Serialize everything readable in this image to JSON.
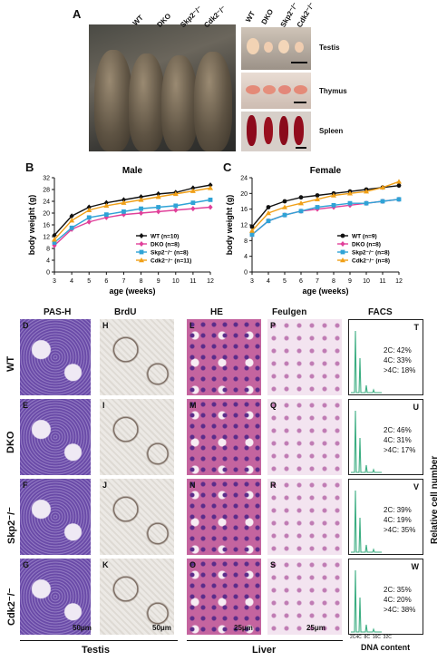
{
  "panelA": {
    "letter": "A",
    "mouse_labels": [
      "WT",
      "DKO",
      "Skp2⁻/⁻",
      "Cdk2⁻/⁻"
    ],
    "organ_labels": [
      "Testis",
      "Thymus",
      "Spleen"
    ],
    "organ_col_labels": [
      "WT",
      "DKO",
      "Skp2⁻/⁻",
      "Cdk2⁻/⁻"
    ]
  },
  "chart_data": [
    {
      "type": "line",
      "panel": "B",
      "title": "Male",
      "xlabel": "age (weeks)",
      "ylabel": "body weight (g)",
      "x": [
        3,
        4,
        5,
        6,
        7,
        8,
        9,
        10,
        11,
        12
      ],
      "xlim": [
        3,
        12
      ],
      "ylim": [
        0,
        32
      ],
      "yticks": [
        0,
        4,
        8,
        12,
        16,
        20,
        24,
        28,
        32
      ],
      "series": [
        {
          "name": "WT (n=10)",
          "color": "#111111",
          "marker": "diamond",
          "values": [
            12.5,
            19,
            22,
            23.5,
            24.5,
            25.5,
            26.5,
            27,
            28.5,
            29.5
          ]
        },
        {
          "name": "DKO (n=8)",
          "color": "#e0409a",
          "marker": "diamond",
          "values": [
            9,
            14.5,
            17,
            18.5,
            19.5,
            20,
            20.5,
            21,
            21.5,
            22
          ]
        },
        {
          "name": "Skp2⁻/⁻ (n=8)",
          "color": "#2fa3d6",
          "marker": "square",
          "values": [
            10,
            15,
            18.5,
            19.5,
            20.5,
            21.5,
            22,
            22.5,
            23.5,
            24.5
          ]
        },
        {
          "name": "Cdk2⁻/⁻ (n=11)",
          "color": "#f0a018",
          "marker": "triangle",
          "values": [
            11,
            17.5,
            21,
            22.5,
            23.5,
            24.5,
            25.5,
            26.5,
            27.5,
            28.5
          ]
        }
      ]
    },
    {
      "type": "line",
      "panel": "C",
      "title": "Female",
      "xlabel": "age (weeks)",
      "ylabel": "body weight (g)",
      "x": [
        3,
        4,
        5,
        6,
        7,
        8,
        9,
        10,
        11,
        12
      ],
      "xlim": [
        3,
        12
      ],
      "ylim": [
        0,
        24
      ],
      "yticks": [
        0,
        4,
        8,
        12,
        16,
        20,
        24
      ],
      "series": [
        {
          "name": "WT (n=9)",
          "color": "#111111",
          "marker": "circle",
          "values": [
            11.5,
            16.5,
            18,
            19,
            19.5,
            20,
            20.5,
            21,
            21.5,
            22
          ]
        },
        {
          "name": "DKO (n=8)",
          "color": "#e0409a",
          "marker": "diamond",
          "values": [
            9.5,
            13,
            14.5,
            15.5,
            16,
            16.5,
            17,
            17.5,
            18,
            18.5
          ]
        },
        {
          "name": "Skp2⁻/⁻ (n=8)",
          "color": "#2fa3d6",
          "marker": "square",
          "values": [
            9.5,
            13,
            14.5,
            15.5,
            16.5,
            17,
            17.5,
            17.5,
            18,
            18.5
          ]
        },
        {
          "name": "Cdk2⁻/⁻ (n=8)",
          "color": "#f0a018",
          "marker": "triangle",
          "values": [
            10.5,
            15,
            16.5,
            17.5,
            18.5,
            19.5,
            20,
            20.5,
            21.5,
            23
          ]
        }
      ]
    }
  ],
  "histology": {
    "col_heads": [
      "PAS-H",
      "BrdU",
      "HE",
      "Feulgen",
      "FACS"
    ],
    "row_labels": [
      "WT",
      "DKO",
      "Skp2⁻/⁻",
      "Cdk2⁻/⁻"
    ],
    "letters": [
      [
        "D",
        "H",
        "L",
        "P",
        "T"
      ],
      [
        "E",
        "I",
        "M",
        "Q",
        "U"
      ],
      [
        "F",
        "J",
        "N",
        "R",
        "V"
      ],
      [
        "G",
        "K",
        "O",
        "S",
        "W"
      ]
    ],
    "facs": [
      {
        "c2": "2C: 42%",
        "c4": "4C: 33%",
        "gt4": ">4C: 18%"
      },
      {
        "c2": "2C: 46%",
        "c4": "4C: 31%",
        "gt4": ">4C: 17%"
      },
      {
        "c2": "2C: 39%",
        "c4": "4C: 19%",
        "gt4": ">4C: 35%"
      },
      {
        "c2": "2C: 35%",
        "c4": "4C: 20%",
        "gt4": ">4C: 38%"
      }
    ],
    "facs_xticks": "2C4C  8C  16C  32C",
    "facs_xlabel": "DNA content",
    "facs_ylabel": "Relative cell number",
    "scale_bars": [
      "50μm",
      "50μm",
      "25μm",
      "25μm"
    ],
    "group_labels": [
      "Testis",
      "Liver"
    ]
  },
  "colors": {
    "pas": "#7a5fb0",
    "brdu": "#e7e4e0",
    "he": "#b85a9e",
    "feulgen": "#efd9ea",
    "facs_peak": "#3cae82"
  }
}
